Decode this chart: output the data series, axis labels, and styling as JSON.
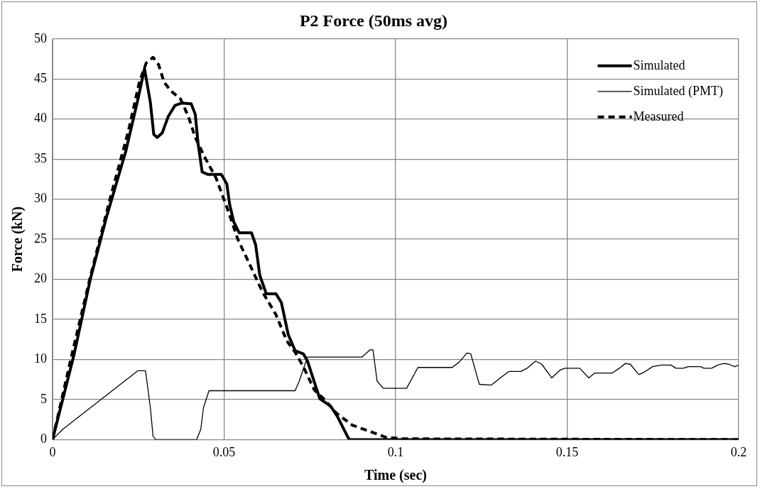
{
  "chart_data": {
    "type": "line",
    "title": "P2 Force (50ms avg)",
    "xlabel": "Time (sec)",
    "ylabel": "Force (kN)",
    "xlim": [
      0,
      0.2
    ],
    "xticks": [
      0,
      0.05,
      0.1,
      0.15,
      0.2
    ],
    "ylim": [
      0,
      50
    ],
    "yticks": [
      0,
      5,
      10,
      15,
      20,
      25,
      30,
      35,
      40,
      45,
      50
    ],
    "grid": true,
    "legend": "top right",
    "marker": "none",
    "series": [
      {
        "name": "Simulated",
        "color": "#000000",
        "line_style": "solid",
        "x": [
          0,
          0.0062,
          0.011,
          0.0158,
          0.0213,
          0.0249,
          0.0268,
          0.0285,
          0.0295,
          0.0305,
          0.032,
          0.0337,
          0.0357,
          0.0377,
          0.0404,
          0.0416,
          0.0424,
          0.0436,
          0.0452,
          0.0492,
          0.0508,
          0.0516,
          0.0528,
          0.0544,
          0.058,
          0.0592,
          0.0604,
          0.0623,
          0.0651,
          0.0667,
          0.0687,
          0.0707,
          0.0731,
          0.0743,
          0.0779,
          0.081,
          0.083,
          0.0862,
          0.0866,
          0.2
        ],
        "values": [
          0,
          10.5,
          20,
          27.9,
          35.9,
          42.5,
          46.3,
          42.1,
          38.1,
          37.7,
          38.3,
          40.3,
          41.7,
          42,
          41.9,
          40.6,
          37,
          33.4,
          33.1,
          33.1,
          31.9,
          29.4,
          27.2,
          25.8,
          25.8,
          24.3,
          20.5,
          18.2,
          18.2,
          17.1,
          13.1,
          11.1,
          10.7,
          9.8,
          5.1,
          4.2,
          2.9,
          0.2,
          0,
          0
        ]
      },
      {
        "name": "Simulated (PMT)",
        "color": "#000000",
        "line_style": "solid",
        "x": [
          0,
          0.003,
          0.0249,
          0.0271,
          0.0285,
          0.0293,
          0.0301,
          0.042,
          0.0432,
          0.044,
          0.0456,
          0.0707,
          0.0719,
          0.0743,
          0.0902,
          0.0925,
          0.0934,
          0.0946,
          0.0964,
          0.1032,
          0.1065,
          0.1165,
          0.1186,
          0.1208,
          0.1219,
          0.1244,
          0.1279,
          0.1305,
          0.133,
          0.1365,
          0.1383,
          0.1408,
          0.1426,
          0.1455,
          0.148,
          0.1494,
          0.1537,
          0.1563,
          0.158,
          0.1631,
          0.1652,
          0.167,
          0.1684,
          0.1709,
          0.1724,
          0.1749,
          0.1774,
          0.1803,
          0.1817,
          0.1838,
          0.1853,
          0.1889,
          0.1899,
          0.1921,
          0.1939,
          0.1957,
          0.1971,
          0.1989,
          0.2
        ],
        "values": [
          0,
          1.3,
          8.6,
          8.6,
          4,
          0.4,
          0,
          0,
          1.3,
          4,
          6.1,
          6.1,
          7.3,
          10.3,
          10.3,
          11.2,
          11.2,
          7.3,
          6.4,
          6.4,
          9,
          9,
          9.7,
          10.8,
          10.7,
          6.9,
          6.8,
          7.7,
          8.5,
          8.5,
          8.9,
          9.8,
          9.4,
          7.7,
          8.7,
          8.9,
          8.9,
          7.7,
          8.3,
          8.3,
          8.9,
          9.5,
          9.4,
          8.1,
          8.4,
          9.1,
          9.3,
          9.3,
          8.9,
          8.9,
          9.1,
          9.1,
          8.9,
          8.9,
          9.3,
          9.5,
          9.4,
          9.1,
          9.3
        ]
      },
      {
        "name": "Measured",
        "color": "#000000",
        "line_style": "dashed",
        "x": [
          0,
          0.0054,
          0.011,
          0.0166,
          0.0221,
          0.0253,
          0.0273,
          0.0293,
          0.0309,
          0.0325,
          0.0345,
          0.0373,
          0.0396,
          0.0416,
          0.0444,
          0.0476,
          0.0508,
          0.054,
          0.0572,
          0.0611,
          0.0651,
          0.0683,
          0.0707,
          0.0731,
          0.0763,
          0.0795,
          0.0827,
          0.0874,
          0.0913,
          0.0971,
          0.102,
          0.2
        ],
        "values": [
          0,
          10.2,
          20.3,
          29.8,
          38.5,
          44.6,
          47,
          47.7,
          46.8,
          44.6,
          43.5,
          42.5,
          40.3,
          37.7,
          35.2,
          32.7,
          29,
          25,
          22.1,
          18.5,
          15.6,
          12.3,
          10.9,
          9.1,
          6.2,
          4.9,
          3.3,
          1.8,
          1.2,
          0.3,
          0.1,
          0
        ]
      }
    ]
  }
}
